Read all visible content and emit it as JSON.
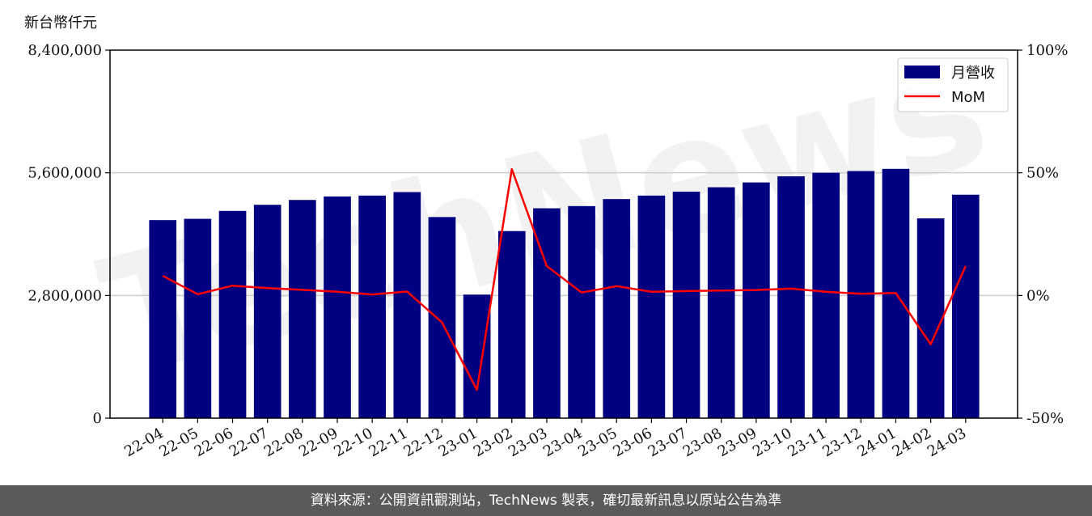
{
  "chart_data": {
    "type": "bar",
    "categories": [
      "22-04",
      "22-05",
      "22-06",
      "22-07",
      "22-08",
      "22-09",
      "22-10",
      "22-11",
      "22-12",
      "23-01",
      "23-02",
      "23-03",
      "23-04",
      "23-05",
      "23-06",
      "23-07",
      "23-08",
      "23-09",
      "23-10",
      "23-11",
      "23-12",
      "24-01",
      "24-02",
      "24-03"
    ],
    "ylabel": "新台幣仟元",
    "ylim": [
      0,
      8400000
    ],
    "yticks": [
      "0",
      "2,800,000",
      "5,600,000",
      "8,400,000"
    ],
    "ytick_values": [
      0,
      2800000,
      5600000,
      8400000
    ],
    "y2lim": [
      -50,
      100
    ],
    "y2ticks": [
      "-50%",
      "0%",
      "50%",
      "100%"
    ],
    "y2tick_values": [
      -50,
      0,
      50,
      100
    ],
    "grid": "horizontal",
    "legend_position": "top-right",
    "watermark": "TechNews",
    "series": [
      {
        "name": "月營收",
        "type": "bar",
        "color": "#000080",
        "values": [
          4520000,
          4550000,
          4730000,
          4870000,
          4980000,
          5060000,
          5080000,
          5160000,
          4590000,
          2820000,
          4270000,
          4790000,
          4840000,
          5000000,
          5080000,
          5170000,
          5270000,
          5380000,
          5520000,
          5600000,
          5640000,
          5690000,
          4560000,
          5100000
        ]
      },
      {
        "name": "MoM",
        "type": "line",
        "axis": "right",
        "color": "#ff0000",
        "values": [
          8,
          0.5,
          4,
          3,
          2.3,
          1.5,
          0.4,
          1.6,
          -11,
          -38.5,
          51.5,
          12,
          1.2,
          3.8,
          1.5,
          1.8,
          2,
          2.2,
          2.8,
          1.5,
          0.7,
          1,
          -19.9,
          12
        ]
      }
    ]
  },
  "footer_text": "資料來源：公開資訊觀測站，TechNews 製表，確切最新訊息以原站公告為準"
}
